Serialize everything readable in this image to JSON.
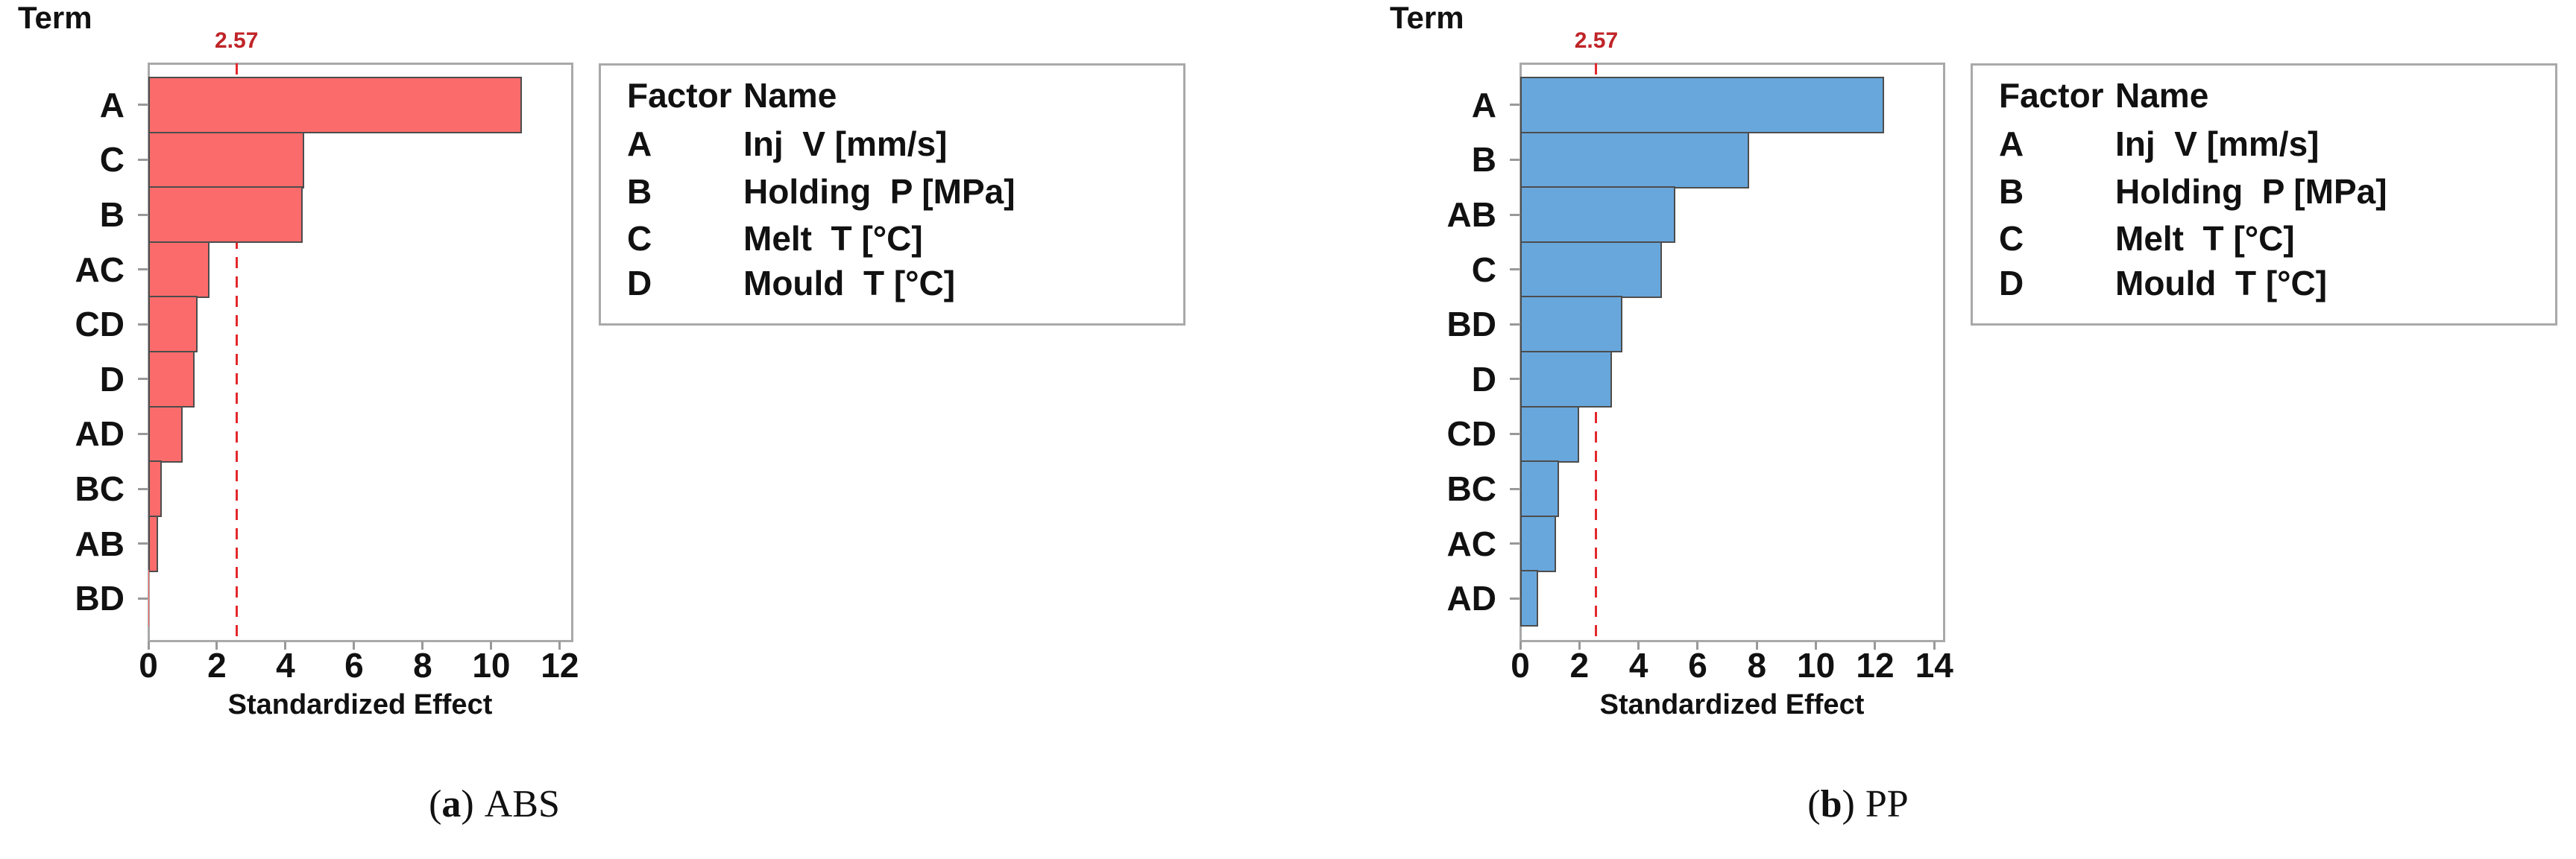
{
  "figure": {
    "term_label": "Term",
    "xlabel": "Standardized Effect",
    "reference_label": "2.57",
    "factor_table": {
      "header": [
        "Factor",
        "Name"
      ],
      "rows": [
        [
          "A",
          "Inj  V [mm/s]"
        ],
        [
          "B",
          "Holding  P [MPa]"
        ],
        [
          "C",
          "Melt  T [°C]"
        ],
        [
          "D",
          "Mould  T [°C]"
        ]
      ]
    },
    "captions": [
      {
        "open": "(",
        "letter": "a",
        "close": ")",
        "label": "ABS"
      },
      {
        "open": "(",
        "letter": "b",
        "close": ")",
        "label": "PP"
      }
    ],
    "colors": {
      "abs_bar_fill": "#fc6b6b",
      "pp_bar_fill": "#68a7dc",
      "bar_border": "#4d4d4d",
      "frame_gray": "#a9a9a9",
      "reference_line_red": "#e3282c",
      "reference_label_red": "#bf2428",
      "text_black": "#111111"
    }
  },
  "chart_data": [
    {
      "type": "bar",
      "orientation": "horizontal",
      "title": "Pareto chart of standardized effects — ABS",
      "term_axis_label": "Term",
      "xlabel": "Standardized Effect",
      "categories": [
        "A",
        "C",
        "B",
        "AC",
        "CD",
        "D",
        "AD",
        "BC",
        "AB",
        "BD"
      ],
      "values": [
        10.9,
        4.55,
        4.5,
        1.78,
        1.43,
        1.35,
        1.0,
        0.39,
        0.28,
        0.03
      ],
      "x_ticks": [
        0,
        2,
        4,
        6,
        8,
        10,
        12
      ],
      "xlim": [
        0,
        12.35
      ],
      "reference_line": 2.57,
      "reference_label": "2.57",
      "bar_color": "#fc6b6b",
      "grid": false,
      "caption": "(a) ABS"
    },
    {
      "type": "bar",
      "orientation": "horizontal",
      "title": "Pareto chart of standardized effects — PP",
      "term_axis_label": "Term",
      "xlabel": "Standardized Effect",
      "categories": [
        "A",
        "B",
        "AB",
        "C",
        "BD",
        "D",
        "CD",
        "BC",
        "AC",
        "AD"
      ],
      "values": [
        12.3,
        7.75,
        5.25,
        4.8,
        3.45,
        3.1,
        2.0,
        1.3,
        1.2,
        0.6
      ],
      "x_ticks": [
        0,
        2,
        4,
        6,
        8,
        10,
        12,
        14
      ],
      "xlim": [
        0,
        14.32
      ],
      "reference_line": 2.57,
      "reference_label": "2.57",
      "bar_color": "#68a7dc",
      "grid": false,
      "caption": "(b) PP"
    }
  ]
}
